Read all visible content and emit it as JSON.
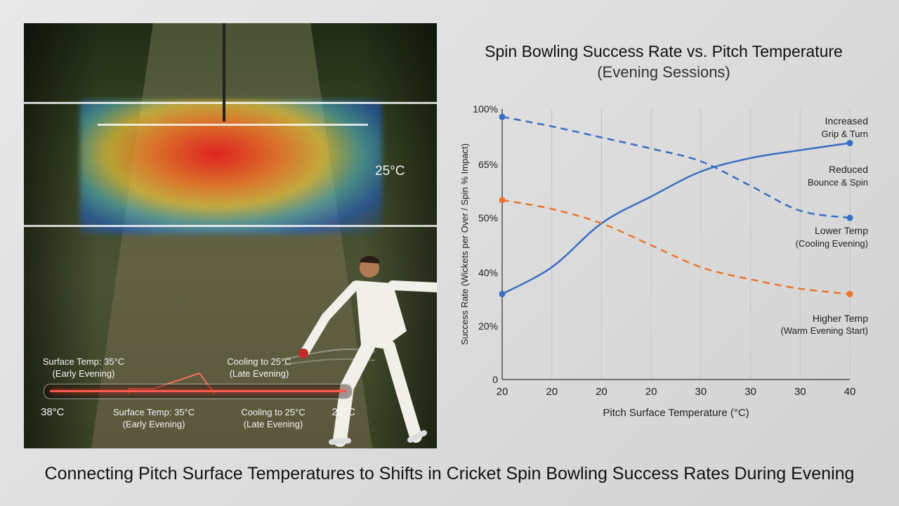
{
  "caption": "Connecting Pitch Surface Temperatures to Shifts in Cricket Spin Bowling Success Rates During Evening",
  "photo": {
    "temp_label": "25°C",
    "top_left_label": "Surface Temp: 35°C\n(Early Evening)",
    "top_right_label": "Cooling to 25°C\n(Late Evening)",
    "bottom_left_temp": "38°C",
    "bottom_mid_label": "Surface Temp: 35°C\n(Early Evening)",
    "bottom_right_label": "Cooling to 25°C\n(Late Evening)",
    "bottom_right_temp": "22°C"
  },
  "chart_data": {
    "type": "line",
    "title": "Spin Bowling Success Rate vs. Pitch Temperature",
    "subtitle": "(Evening Sessions)",
    "xlabel": "Pitch Surface Temperature (°C)",
    "ylabel": "Success Rate (Wickets per Over / Spin % Impact)",
    "x_tick_labels": [
      "20",
      "20",
      "20",
      "20",
      "30",
      "30",
      "30",
      "40"
    ],
    "y_tick_labels": [
      "0",
      "20%",
      "40%",
      "50%",
      "65%",
      "100%"
    ],
    "grid": "vertical",
    "series": [
      {
        "style": "solid",
        "color": "#3a6fc4",
        "points": [
          [
            0,
            32
          ],
          [
            1,
            41
          ],
          [
            2,
            49
          ],
          [
            3,
            56
          ],
          [
            4,
            63
          ],
          [
            5,
            69
          ],
          [
            6,
            74
          ],
          [
            7,
            78.5
          ]
        ]
      },
      {
        "style": "dashed",
        "color": "#3a6fc4",
        "points": [
          [
            0,
            95
          ],
          [
            1,
            89
          ],
          [
            2,
            82
          ],
          [
            3,
            75
          ],
          [
            4,
            67
          ],
          [
            5,
            59
          ],
          [
            6,
            52
          ],
          [
            7,
            50
          ]
        ]
      },
      {
        "style": "dashed",
        "color": "#e8772e",
        "points": [
          [
            0,
            55
          ],
          [
            1,
            52.5
          ],
          [
            2,
            49
          ],
          [
            3,
            45
          ],
          [
            4,
            41
          ],
          [
            5,
            37.5
          ],
          [
            6,
            34
          ],
          [
            7,
            32
          ]
        ]
      }
    ],
    "annotations": [
      {
        "text": "Increased\nGrip & Turn",
        "series": 0
      },
      {
        "text": "Reduced\nBounce & Spin",
        "series": 0
      },
      {
        "text": "Lower Temp\n(Cooling Evening)",
        "series": 1
      },
      {
        "text": "Higher Temp\n(Warm Evening Start)",
        "series": 2
      }
    ]
  }
}
